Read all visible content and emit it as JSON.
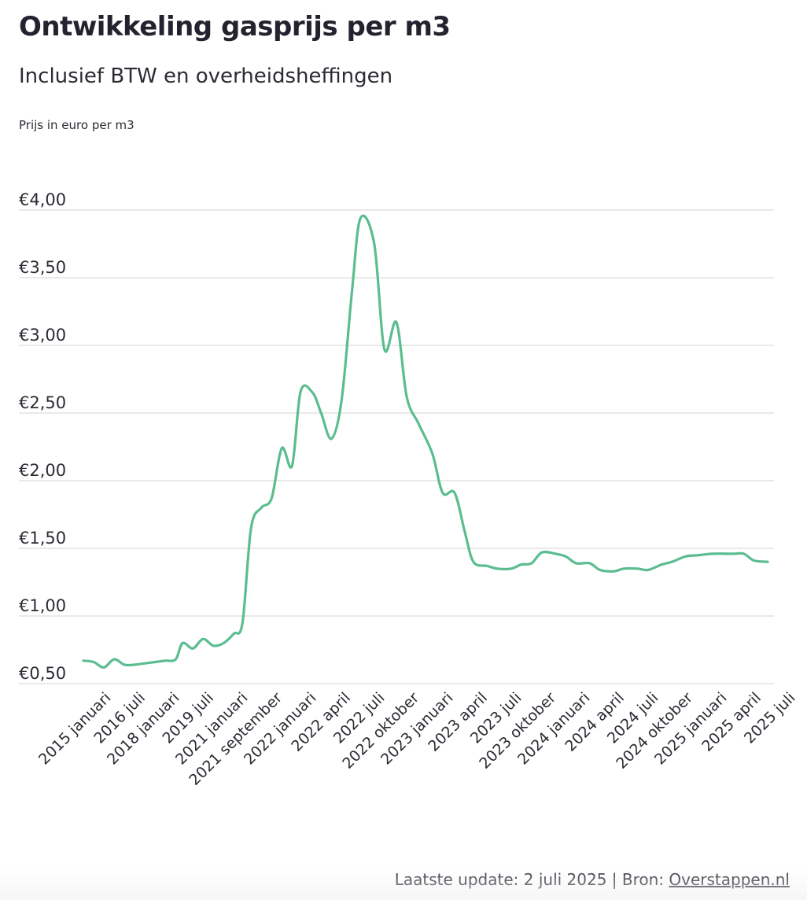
{
  "header": {
    "title": "Ontwikkeling gasprijs per m3",
    "subtitle": "Inclusief BTW en overheidsheffingen",
    "unit_label": "Prijs in euro per m3"
  },
  "footer": {
    "update_text": "Laatste update:  2 juli 2025 | Bron: ",
    "source_link": "Overstappen.nl"
  },
  "colors": {
    "line": "#5bbd8f",
    "grid": "#dcdcdc",
    "text": "#2b2b33"
  },
  "chart_data": {
    "type": "line",
    "title": "Ontwikkeling gasprijs per m3",
    "subtitle": "Inclusief BTW en overheidsheffingen",
    "ylabel": "Prijs in euro per m3",
    "xlabel": "",
    "ylim": [
      0.5,
      4.0
    ],
    "yticks": [
      0.5,
      1.0,
      1.5,
      2.0,
      2.5,
      3.0,
      3.5,
      4.0
    ],
    "ytick_labels": [
      "€0,50",
      "€1,00",
      "€1,50",
      "€2,00",
      "€2,50",
      "€3,00",
      "€3,50",
      "€4,00"
    ],
    "grid": true,
    "categories": [
      "2015 januari",
      "2016 juli",
      "2018 januari",
      "2019 juli",
      "2021 januari",
      "2021 september",
      "2022 januari",
      "2022 april",
      "2022 juli",
      "2022 oktober",
      "2023 januari",
      "2023 april",
      "2023 juli",
      "2023 oktober",
      "2024 januari",
      "2024 april",
      "2024 juli",
      "2024 oktober",
      "2025 januari",
      "2025 april",
      "2025 juli"
    ],
    "series": [
      {
        "values": [
          [
            0.0,
            0.67
          ],
          [
            0.3,
            0.66
          ],
          [
            0.6,
            0.62
          ],
          [
            0.9,
            0.68
          ],
          [
            1.2,
            0.64
          ],
          [
            1.5,
            0.64
          ],
          [
            1.8,
            0.65
          ],
          [
            2.1,
            0.66
          ],
          [
            2.4,
            0.67
          ],
          [
            2.7,
            0.68
          ],
          [
            2.9,
            0.8
          ],
          [
            3.2,
            0.76
          ],
          [
            3.5,
            0.83
          ],
          [
            3.8,
            0.78
          ],
          [
            4.1,
            0.8
          ],
          [
            4.4,
            0.87
          ],
          [
            4.65,
            0.95
          ],
          [
            4.9,
            1.65
          ],
          [
            5.2,
            1.8
          ],
          [
            5.5,
            1.87
          ],
          [
            5.8,
            2.24
          ],
          [
            6.1,
            2.11
          ],
          [
            6.35,
            2.66
          ],
          [
            6.7,
            2.65
          ],
          [
            6.95,
            2.5
          ],
          [
            7.25,
            2.31
          ],
          [
            7.55,
            2.6
          ],
          [
            7.85,
            3.4
          ],
          [
            8.1,
            3.94
          ],
          [
            8.5,
            3.75
          ],
          [
            8.8,
            2.97
          ],
          [
            9.15,
            3.17
          ],
          [
            9.45,
            2.62
          ],
          [
            9.8,
            2.42
          ],
          [
            10.2,
            2.2
          ],
          [
            10.5,
            1.91
          ],
          [
            10.85,
            1.91
          ],
          [
            11.15,
            1.62
          ],
          [
            11.4,
            1.4
          ],
          [
            11.8,
            1.37
          ],
          [
            12.1,
            1.35
          ],
          [
            12.5,
            1.35
          ],
          [
            12.8,
            1.38
          ],
          [
            13.1,
            1.39
          ],
          [
            13.4,
            1.47
          ],
          [
            13.8,
            1.46
          ],
          [
            14.1,
            1.44
          ],
          [
            14.4,
            1.39
          ],
          [
            14.8,
            1.39
          ],
          [
            15.1,
            1.34
          ],
          [
            15.5,
            1.33
          ],
          [
            15.8,
            1.35
          ],
          [
            16.2,
            1.35
          ],
          [
            16.5,
            1.34
          ],
          [
            16.9,
            1.38
          ],
          [
            17.2,
            1.4
          ],
          [
            17.6,
            1.44
          ],
          [
            18.0,
            1.45
          ],
          [
            18.4,
            1.46
          ],
          [
            19.0,
            1.46
          ],
          [
            19.3,
            1.46
          ],
          [
            19.6,
            1.41
          ],
          [
            20.0,
            1.4
          ]
        ]
      }
    ]
  }
}
